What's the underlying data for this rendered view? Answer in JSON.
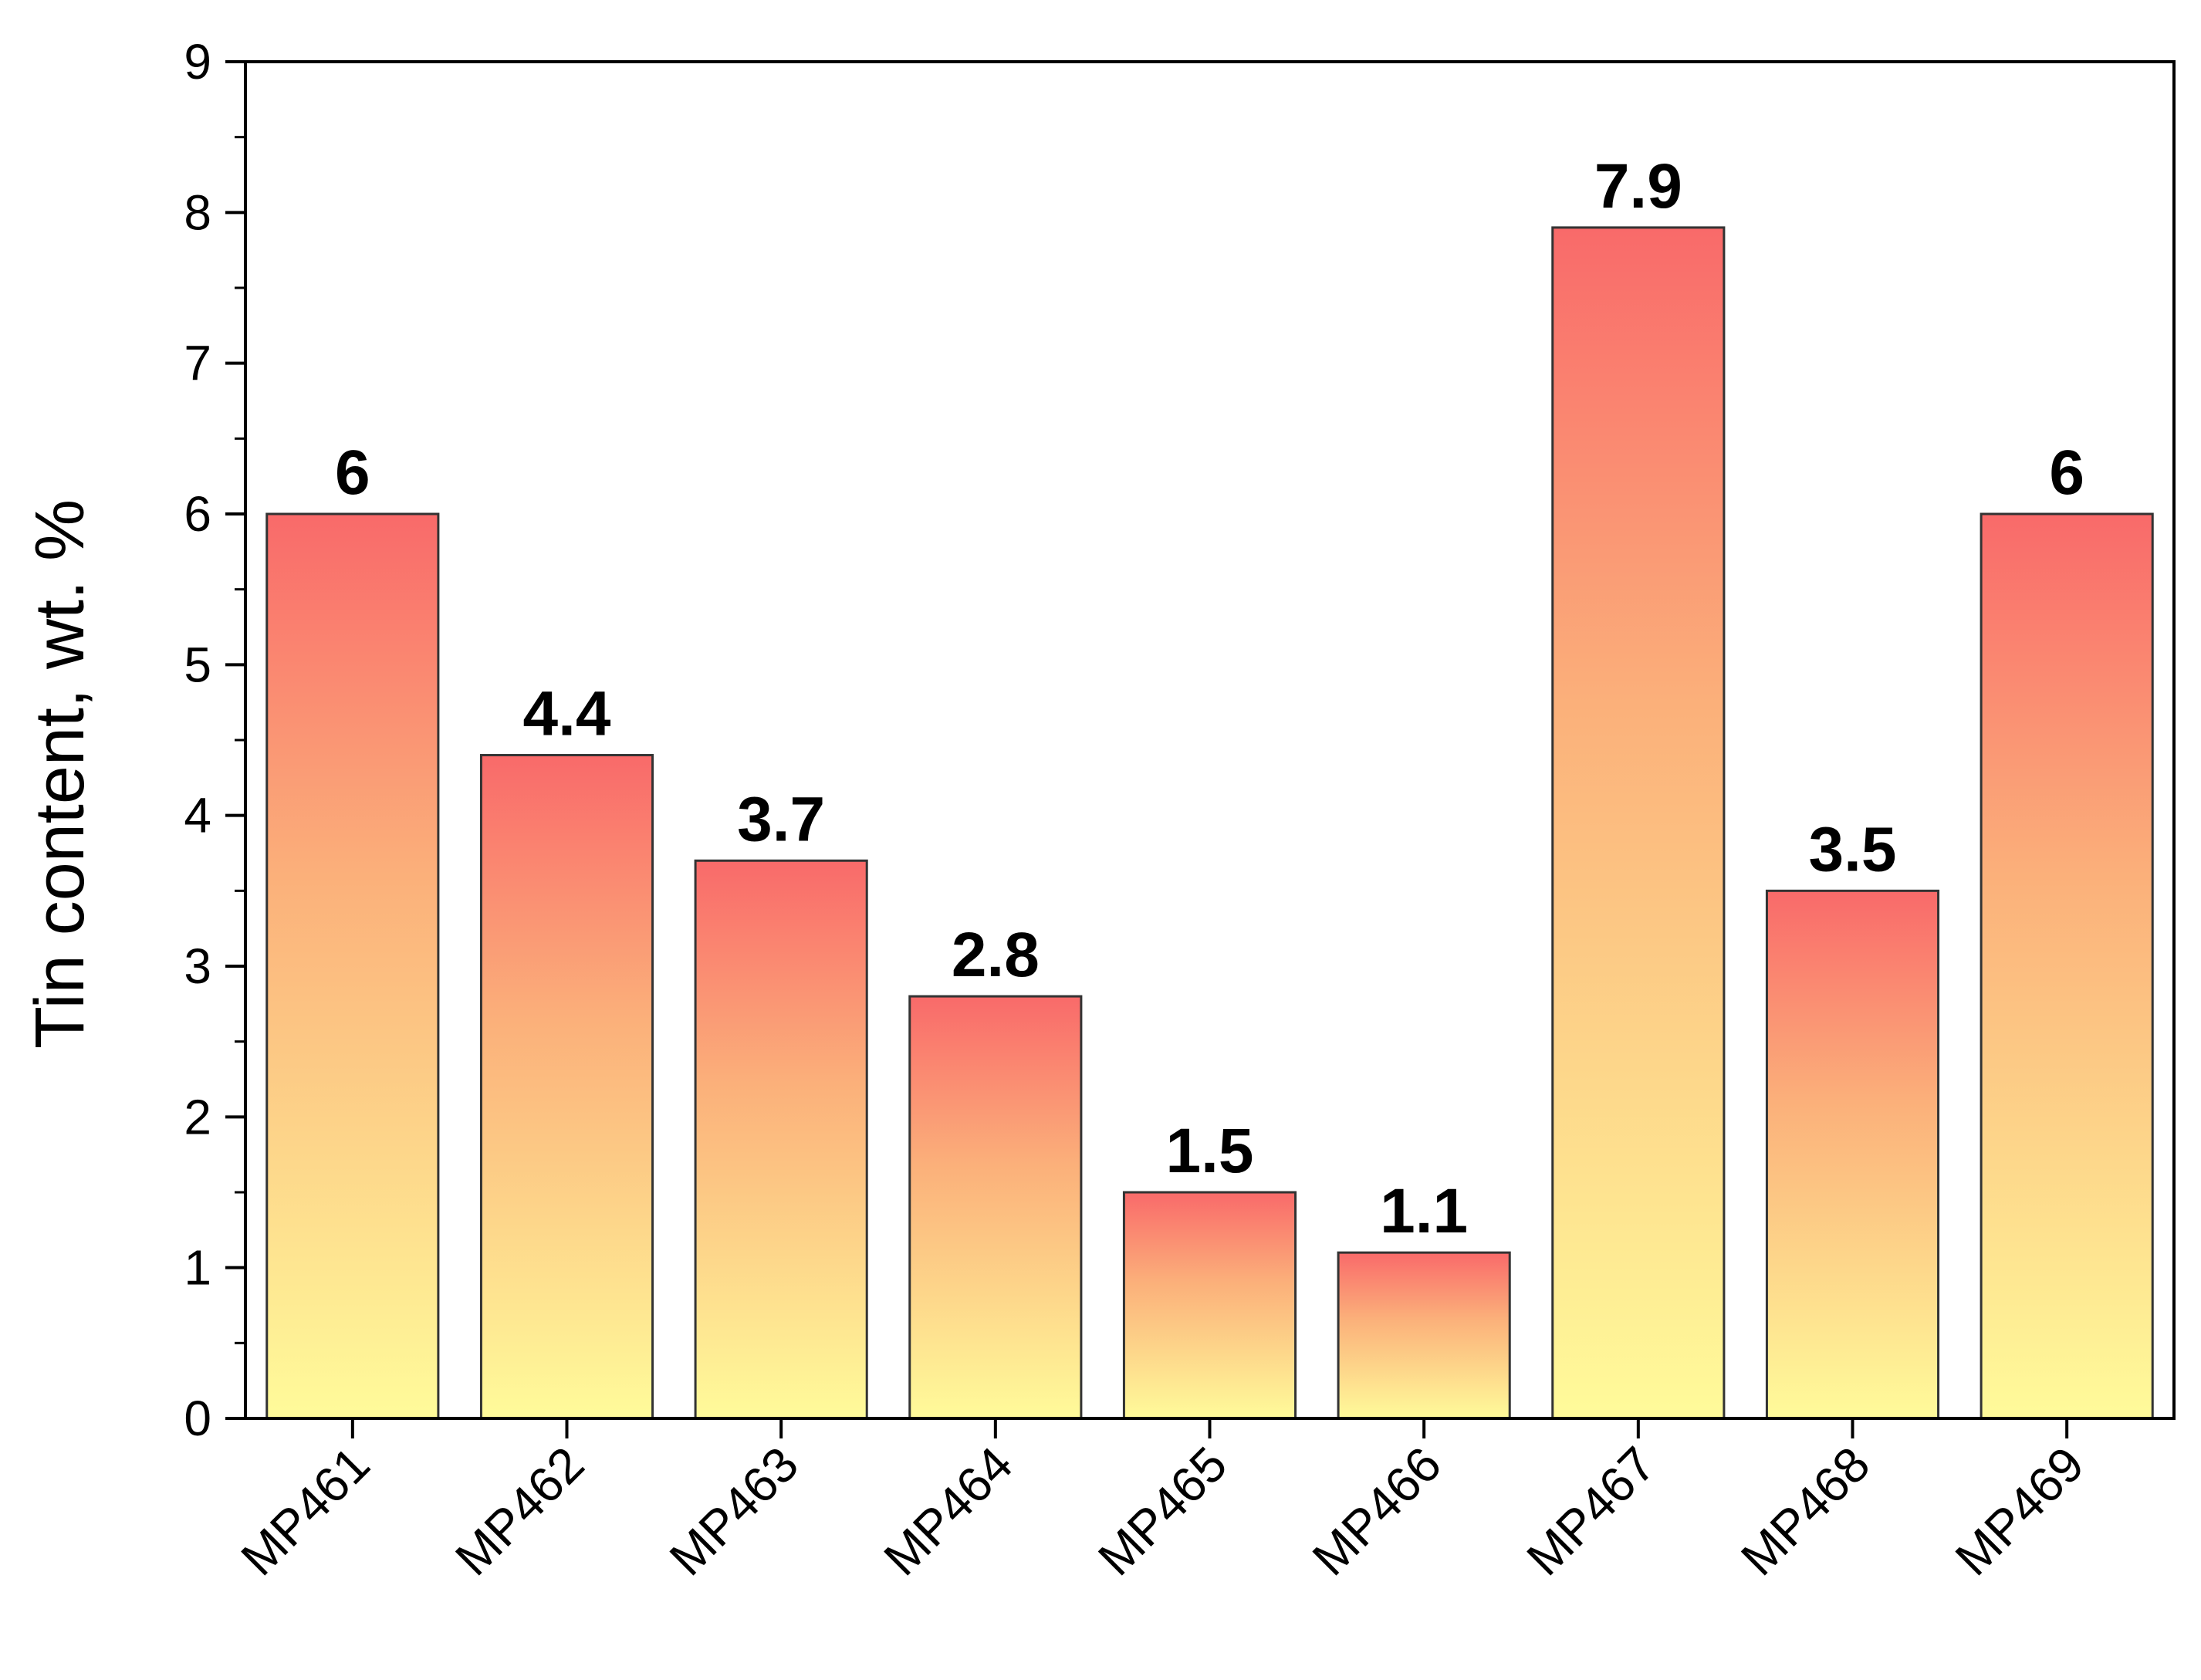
{
  "chart_data": {
    "type": "bar",
    "title": "",
    "xlabel": "",
    "ylabel": "Tin content, wt. %",
    "ylim": [
      0,
      9
    ],
    "yticks": [
      0,
      1,
      2,
      3,
      4,
      5,
      6,
      7,
      8,
      9
    ],
    "grid": false,
    "legend": "none",
    "categories": [
      "MP461",
      "MP462",
      "MP463",
      "MP464",
      "MP465",
      "MP466",
      "MP467",
      "MP468",
      "MP469"
    ],
    "values": [
      6,
      4.4,
      3.7,
      2.8,
      1.5,
      1.1,
      7.9,
      3.5,
      6
    ],
    "data_labels": [
      "6",
      "4.4",
      "3.7",
      "2.8",
      "1.5",
      "1.1",
      "7.9",
      "3.5",
      "6"
    ],
    "colors": {
      "bar_top": "#f96a6a",
      "bar_mid": "#fbb07a",
      "bar_bottom": "#fffb9a",
      "bar_stroke": "#333333",
      "axis": "#000000"
    }
  }
}
